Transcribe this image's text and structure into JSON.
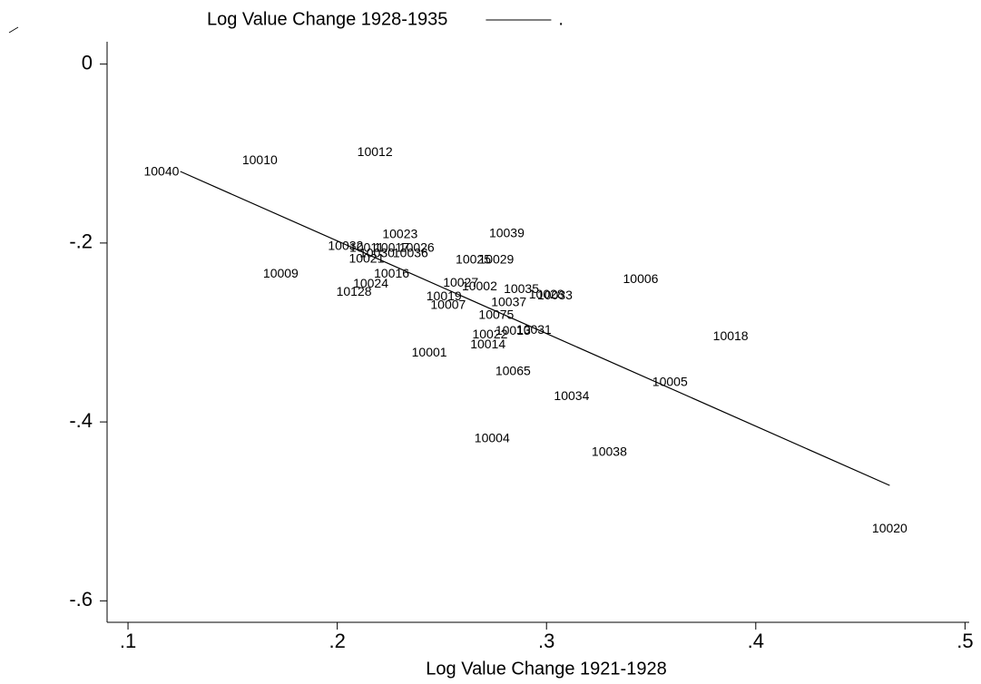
{
  "chart_data": {
    "type": "scatter",
    "x_label": "Log Value Change 1921-1928",
    "xlim": [
      0.09,
      0.502
    ],
    "ylim": [
      -0.624,
      0.025
    ],
    "xticks": [
      {
        "value": 0.1,
        "label": ".1"
      },
      {
        "value": 0.2,
        "label": ".2"
      },
      {
        "value": 0.3,
        "label": ".3"
      },
      {
        "value": 0.4,
        "label": ".4"
      },
      {
        "value": 0.5,
        "label": ".5"
      }
    ],
    "yticks": [
      0,
      {
        "value": -0.2,
        "label": "-.2"
      },
      {
        "value": -0.4,
        "label": "-.4"
      },
      {
        "value": -0.6,
        "label": "-.6"
      }
    ],
    "legend": "top",
    "series": [
      {
        "name": "Log Value Change 1928-1935",
        "type": "scatter",
        "color": "#000000",
        "labels": [
          "10040",
          "10010",
          "10012",
          "10023",
          "10039",
          "10032",
          "10011",
          "10017",
          "10026",
          "10030",
          "10036",
          "10021",
          "10009",
          "10016",
          "10024",
          "10128",
          "10025",
          "10029",
          "10027",
          "10002",
          "10035",
          "10028",
          "10033",
          "10019",
          "10007",
          "10037",
          "10006",
          "10075",
          "10013",
          "10031",
          "10022",
          "10014",
          "10018",
          "10001",
          "10065",
          "10005",
          "10034",
          "10004",
          "10038",
          "10020"
        ],
        "x": [
          0.116,
          0.163,
          0.218,
          0.23,
          0.281,
          0.204,
          0.214,
          0.226,
          0.238,
          0.219,
          0.235,
          0.214,
          0.173,
          0.226,
          0.216,
          0.208,
          0.265,
          0.276,
          0.259,
          0.268,
          0.288,
          0.3,
          0.304,
          0.251,
          0.253,
          0.282,
          0.345,
          0.276,
          0.284,
          0.294,
          0.273,
          0.272,
          0.388,
          0.244,
          0.284,
          0.359,
          0.312,
          0.274,
          0.33,
          0.464
        ],
        "values": [
          -0.121,
          -0.108,
          -0.099,
          -0.191,
          -0.19,
          -0.204,
          -0.206,
          -0.206,
          -0.206,
          -0.212,
          -0.212,
          -0.218,
          -0.235,
          -0.235,
          -0.246,
          -0.255,
          -0.219,
          -0.219,
          -0.245,
          -0.249,
          -0.252,
          -0.258,
          -0.259,
          -0.26,
          -0.27,
          -0.267,
          -0.241,
          -0.281,
          -0.299,
          -0.298,
          -0.303,
          -0.314,
          -0.305,
          -0.323,
          -0.344,
          -0.356,
          -0.372,
          -0.419,
          -0.434,
          -0.52
        ]
      },
      {
        "name": ".",
        "type": "line",
        "color": "#000000",
        "x": [
          0.125,
          0.464
        ],
        "values": [
          -0.12,
          -0.471
        ]
      }
    ]
  }
}
